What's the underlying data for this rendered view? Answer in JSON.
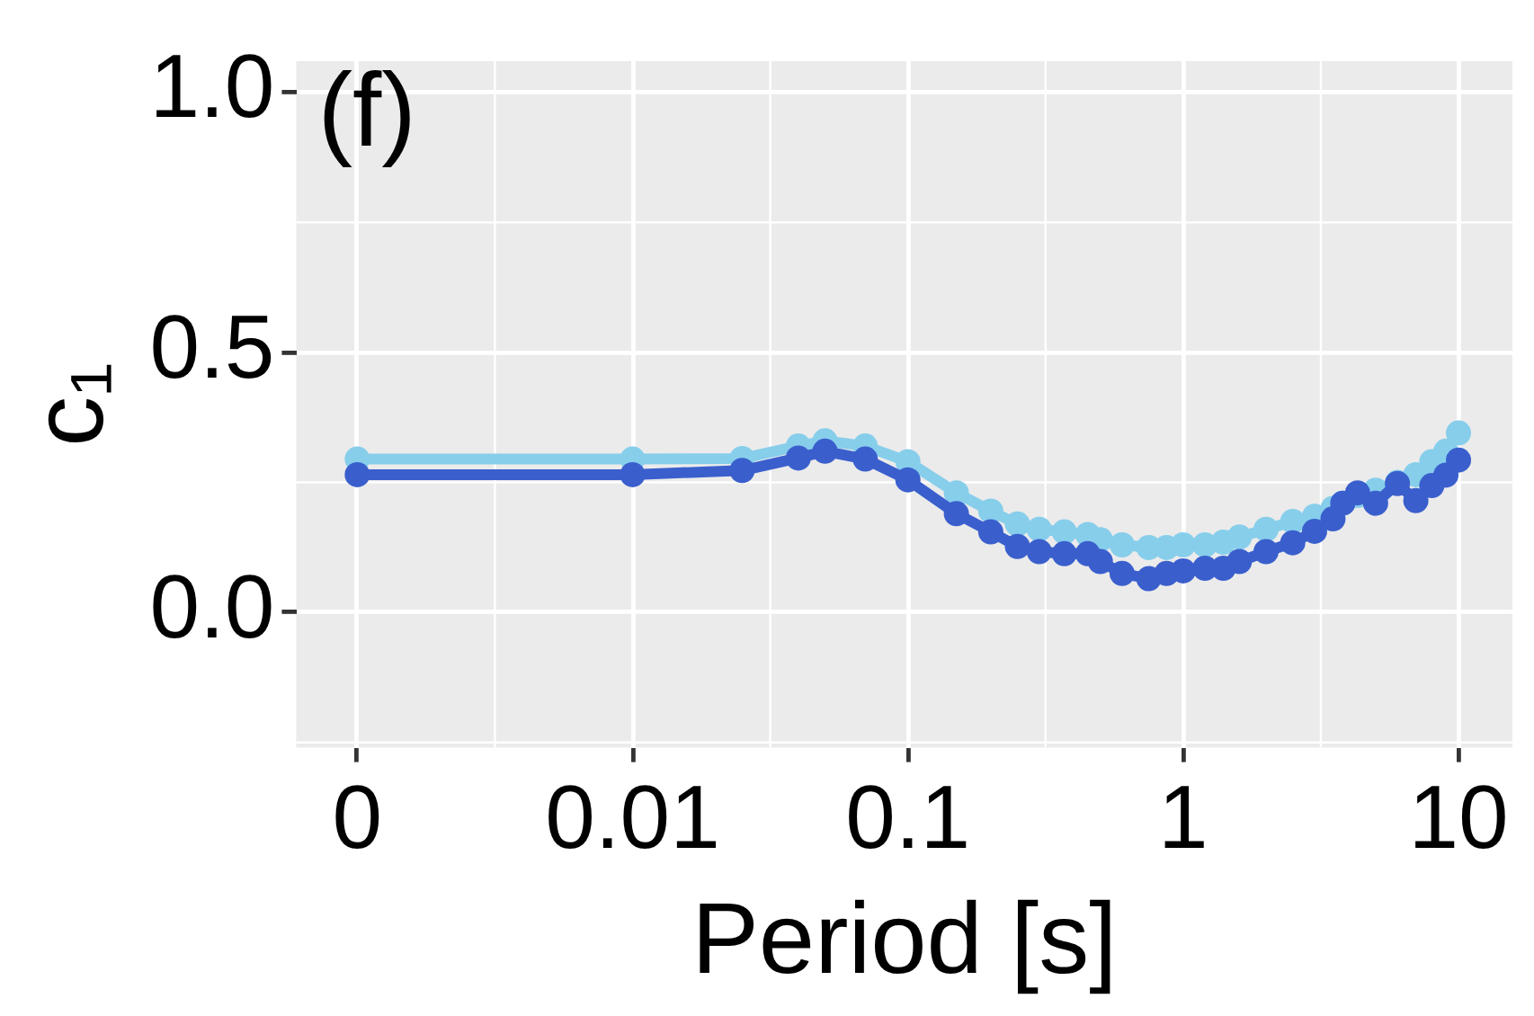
{
  "chart_data": {
    "type": "line",
    "xlabel": "Period [s]",
    "ylabel": "c₁",
    "annotations": [
      "(f)"
    ],
    "log": "x",
    "xlim": [
      0.0006,
      15.7
    ],
    "xticks": [
      {
        "value": 0.001,
        "label": "0"
      },
      0.01,
      0.1,
      1,
      10
    ],
    "ylim": [
      -0.26,
      1.06
    ],
    "yticks": [
      {
        "value": 0,
        "label": "0.0"
      },
      0.5,
      {
        "value": 1,
        "label": "1.0"
      }
    ],
    "grid": true,
    "legend": false,
    "marker": "circle",
    "line_style": "solid",
    "x": [
      0.001,
      0.01,
      0.025,
      0.04,
      0.05,
      0.07,
      0.1,
      0.15,
      0.2,
      0.25,
      0.3,
      0.37,
      0.45,
      0.5,
      0.6,
      0.75,
      0.87,
      1,
      1.2,
      1.4,
      1.6,
      2,
      2.5,
      3,
      3.5,
      3.8,
      4.3,
      5,
      6,
      7,
      8,
      9,
      10
    ],
    "series": [
      {
        "color": "#87ceeb",
        "values": [
          0.295,
          0.295,
          0.296,
          0.32,
          0.33,
          0.32,
          0.29,
          0.23,
          0.195,
          0.17,
          0.16,
          0.155,
          0.15,
          0.14,
          0.13,
          0.125,
          0.125,
          0.13,
          0.13,
          0.135,
          0.145,
          0.16,
          0.175,
          0.185,
          0.2,
          0.21,
          0.225,
          0.235,
          0.25,
          0.265,
          0.29,
          0.31,
          0.345
        ]
      },
      {
        "color": "#3a5fcd",
        "values": [
          0.265,
          0.265,
          0.273,
          0.297,
          0.31,
          0.295,
          0.255,
          0.19,
          0.155,
          0.127,
          0.117,
          0.113,
          0.113,
          0.098,
          0.075,
          0.065,
          0.075,
          0.08,
          0.085,
          0.085,
          0.098,
          0.117,
          0.134,
          0.156,
          0.18,
          0.21,
          0.23,
          0.21,
          0.248,
          0.215,
          0.244,
          0.264,
          0.293
        ]
      }
    ]
  }
}
